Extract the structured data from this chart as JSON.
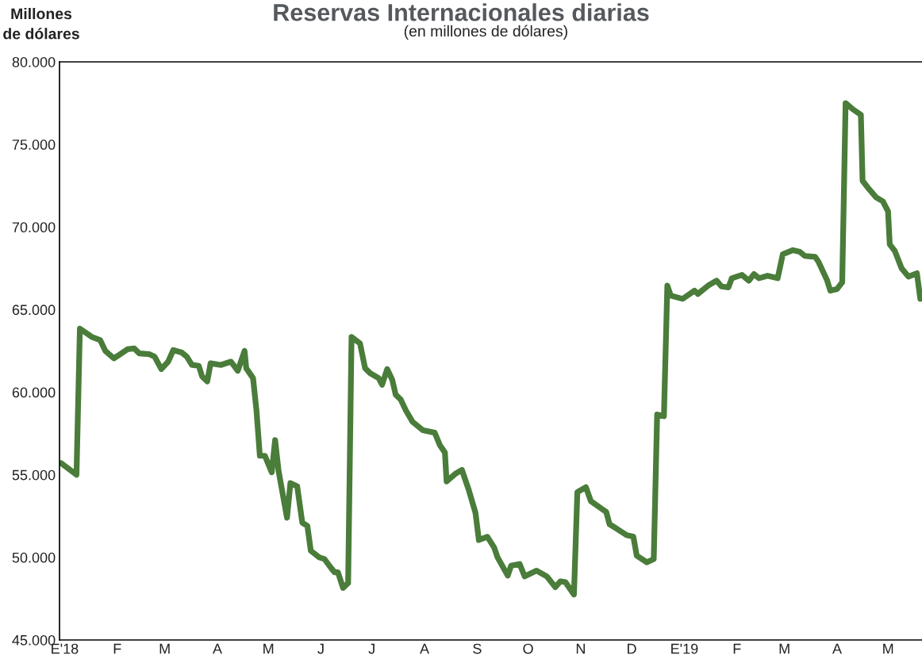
{
  "chart_data": {
    "type": "line",
    "title": "Reservas Internacionales diarias",
    "subtitle": "(en millones de dólares)",
    "ylabel": "Millones\nde dólares",
    "x": [
      "2017-12-30",
      "2018-01-08",
      "2018-01-10",
      "2018-01-17",
      "2018-01-22",
      "2018-01-25",
      "2018-01-30",
      "2018-02-02",
      "2018-02-07",
      "2018-02-11",
      "2018-02-14",
      "2018-02-20",
      "2018-02-23",
      "2018-02-27",
      "2018-03-03",
      "2018-03-06",
      "2018-03-11",
      "2018-03-14",
      "2018-03-17",
      "2018-03-21",
      "2018-03-23",
      "2018-03-26",
      "2018-03-28",
      "2018-04-03",
      "2018-04-09",
      "2018-04-13",
      "2018-04-17",
      "2018-04-18",
      "2018-04-22",
      "2018-04-24",
      "2018-04-26",
      "2018-04-29",
      "2018-05-03",
      "2018-05-05",
      "2018-05-07",
      "2018-05-12",
      "2018-05-14",
      "2018-05-18",
      "2018-05-21",
      "2018-05-24",
      "2018-05-26",
      "2018-05-31",
      "2018-06-03",
      "2018-06-07",
      "2018-06-09",
      "2018-06-11",
      "2018-06-14",
      "2018-06-17",
      "2018-06-19",
      "2018-06-24",
      "2018-06-27",
      "2018-06-30",
      "2018-07-05",
      "2018-07-07",
      "2018-07-10",
      "2018-07-13",
      "2018-07-15",
      "2018-07-18",
      "2018-07-21",
      "2018-07-25",
      "2018-07-31",
      "2018-08-07",
      "2018-08-10",
      "2018-08-13",
      "2018-08-14",
      "2018-08-19",
      "2018-08-23",
      "2018-08-27",
      "2018-08-31",
      "2018-09-02",
      "2018-09-07",
      "2018-09-11",
      "2018-09-13",
      "2018-09-19",
      "2018-09-21",
      "2018-09-26",
      "2018-09-29",
      "2018-10-06",
      "2018-10-12",
      "2018-10-17",
      "2018-10-20",
      "2018-10-23",
      "2018-10-28",
      "2018-10-30",
      "2018-11-04",
      "2018-11-07",
      "2018-11-16",
      "2018-11-18",
      "2018-11-22",
      "2018-11-28",
      "2018-12-02",
      "2018-12-04",
      "2018-12-10",
      "2018-12-14",
      "2018-12-16",
      "2018-12-20",
      "2018-12-22",
      "2018-12-24",
      "2018-12-31",
      "2019-01-07",
      "2019-01-09",
      "2019-01-15",
      "2019-01-20",
      "2019-01-23",
      "2019-01-27",
      "2019-01-29",
      "2019-02-04",
      "2019-02-08",
      "2019-02-11",
      "2019-02-14",
      "2019-02-19",
      "2019-02-25",
      "2019-02-28",
      "2019-03-06",
      "2019-03-10",
      "2019-03-13",
      "2019-03-19",
      "2019-03-21",
      "2019-03-26",
      "2019-03-28",
      "2019-04-01",
      "2019-04-04",
      "2019-04-06",
      "2019-04-10",
      "2019-04-15",
      "2019-04-16",
      "2019-04-19",
      "2019-04-24",
      "2019-04-28",
      "2019-05-01",
      "2019-05-02",
      "2019-05-05",
      "2019-05-09",
      "2019-05-13",
      "2019-05-18",
      "2019-05-20"
    ],
    "series": [
      {
        "color": "#4a7c3a",
        "values": [
          55700,
          55000,
          63850,
          63350,
          63150,
          62500,
          62050,
          62250,
          62600,
          62650,
          62350,
          62300,
          62150,
          61400,
          61850,
          62550,
          62400,
          62150,
          61650,
          61600,
          60950,
          60650,
          61750,
          61650,
          61850,
          61300,
          62500,
          61450,
          60850,
          58900,
          56150,
          56150,
          55150,
          57100,
          55250,
          52400,
          54500,
          54300,
          52100,
          51900,
          50400,
          50000,
          49900,
          49350,
          49100,
          49100,
          48150,
          48450,
          63350,
          62950,
          61450,
          61150,
          60850,
          60450,
          61400,
          60750,
          59850,
          59550,
          58900,
          58200,
          57700,
          57550,
          56800,
          56350,
          54600,
          55050,
          55300,
          54100,
          52700,
          51050,
          51250,
          50600,
          50000,
          48900,
          49500,
          49600,
          48850,
          49200,
          48850,
          48200,
          48550,
          48500,
          47750,
          53950,
          54250,
          53400,
          52750,
          52000,
          51750,
          51350,
          51250,
          50100,
          49700,
          49900,
          58650,
          58550,
          66450,
          65850,
          65650,
          66150,
          65950,
          66450,
          66750,
          66400,
          66350,
          66900,
          67100,
          66750,
          67150,
          66900,
          67050,
          66900,
          68350,
          68600,
          68500,
          68250,
          68200,
          67900,
          66800,
          66150,
          66250,
          66650,
          77500,
          77150,
          76800,
          72800,
          72400,
          71800,
          71550,
          70950,
          68950,
          68550,
          67500,
          67000,
          67200,
          65650
        ]
      }
    ],
    "xlim": [
      "2017-12-29",
      "2019-05-21"
    ],
    "xticks": [
      {
        "value": "2018-01-01",
        "label": "E'18"
      },
      {
        "value": "2018-02-01",
        "label": "F"
      },
      {
        "value": "2018-03-01",
        "label": "M"
      },
      {
        "value": "2018-04-01",
        "label": "A"
      },
      {
        "value": "2018-05-01",
        "label": "M"
      },
      {
        "value": "2018-06-01",
        "label": "J"
      },
      {
        "value": "2018-07-01",
        "label": "J"
      },
      {
        "value": "2018-08-01",
        "label": "A"
      },
      {
        "value": "2018-09-01",
        "label": "S"
      },
      {
        "value": "2018-10-01",
        "label": "O"
      },
      {
        "value": "2018-11-01",
        "label": "N"
      },
      {
        "value": "2018-12-01",
        "label": "D"
      },
      {
        "value": "2019-01-01",
        "label": "E'19"
      },
      {
        "value": "2019-02-01",
        "label": "F"
      },
      {
        "value": "2019-03-01",
        "label": "M"
      },
      {
        "value": "2019-04-01",
        "label": "A"
      },
      {
        "value": "2019-05-01",
        "label": "M"
      }
    ],
    "ylim": [
      45000,
      80000
    ],
    "yticks": [
      {
        "value": 45000,
        "label": "45.000"
      },
      {
        "value": 50000,
        "label": "50.000"
      },
      {
        "value": 55000,
        "label": "55.000"
      },
      {
        "value": 60000,
        "label": "60.000"
      },
      {
        "value": 65000,
        "label": "65.000"
      },
      {
        "value": 70000,
        "label": "70.000"
      },
      {
        "value": 75000,
        "label": "75.000"
      },
      {
        "value": 80000,
        "label": "80.000"
      }
    ],
    "grid": false,
    "legend": false
  }
}
